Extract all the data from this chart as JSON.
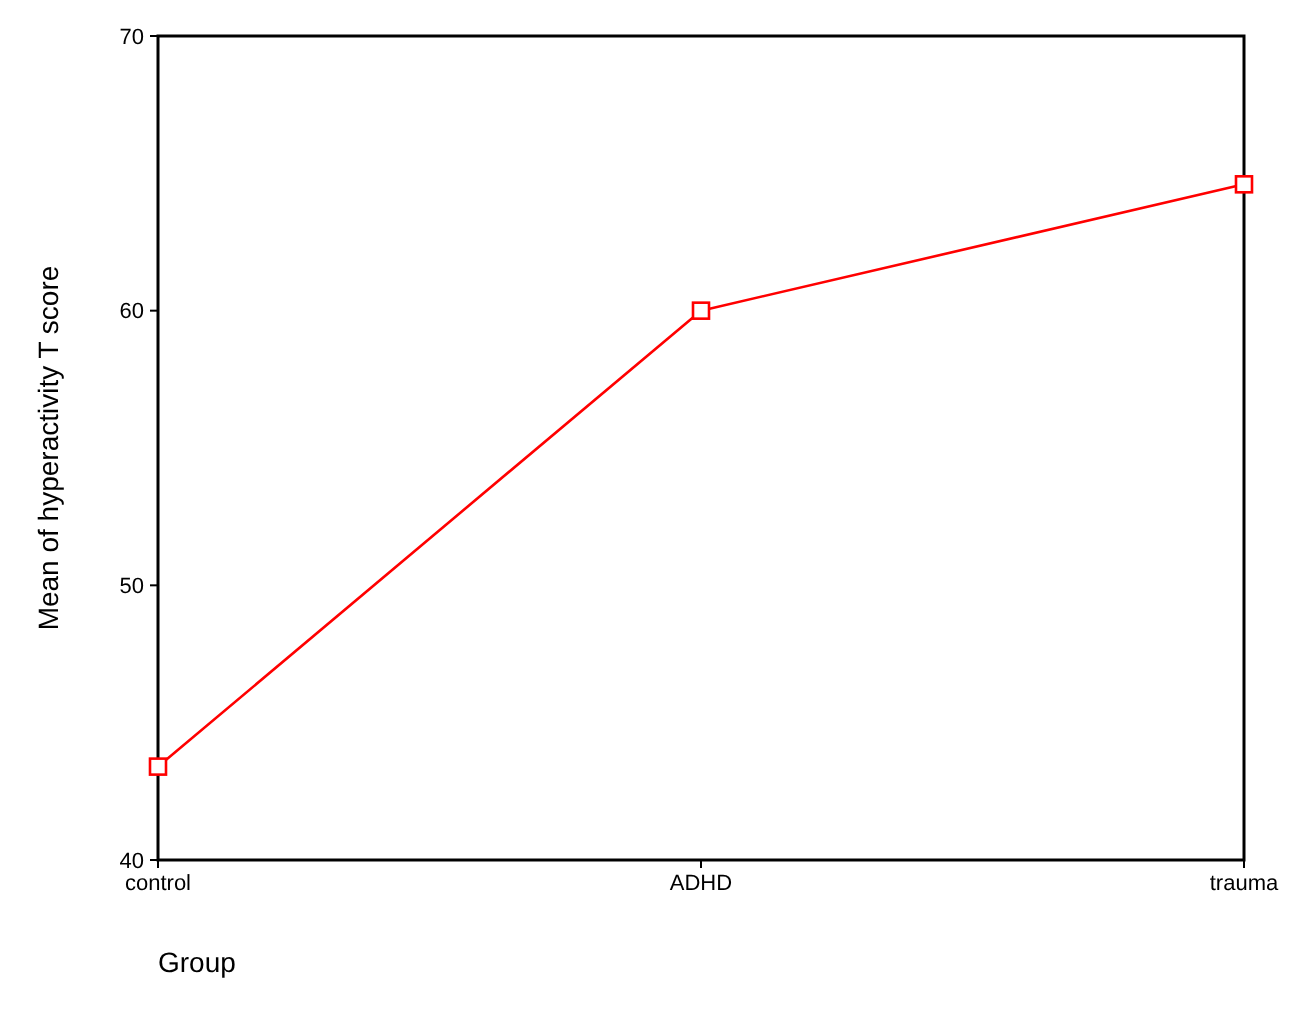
{
  "chart_data": {
    "type": "line",
    "xlabel": "Group",
    "ylabel": "Mean of hyperactivity T score",
    "categories": [
      "control",
      "ADHD",
      "trauma"
    ],
    "series": [
      {
        "color": "#ff0000",
        "values": [
          43.4,
          60.0,
          64.6
        ]
      }
    ],
    "ylim": [
      40,
      70
    ],
    "yticks": [
      40,
      50,
      60,
      70
    ],
    "marker": "square",
    "grid": false
  }
}
